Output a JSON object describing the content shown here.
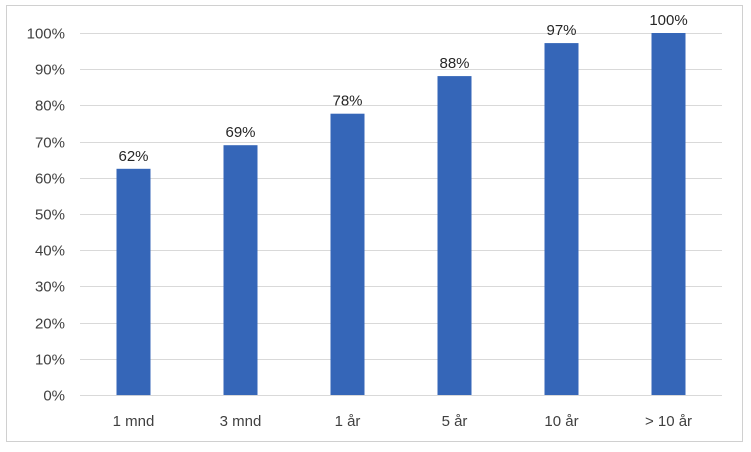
{
  "chart_data": {
    "type": "bar",
    "categories": [
      "1 mnd",
      "3 mnd",
      "1 år",
      "5 år",
      "10 år",
      "> 10 år"
    ],
    "values": [
      62.5,
      69,
      77.7,
      88.1,
      97.2,
      100
    ],
    "data_labels": [
      "62%",
      "69%",
      "78%",
      "88%",
      "97%",
      "100%"
    ],
    "y_ticks": [
      "0%",
      "10%",
      "20%",
      "30%",
      "40%",
      "50%",
      "60%",
      "70%",
      "80%",
      "90%",
      "100%"
    ],
    "ylim": [
      0,
      100
    ],
    "grid": true,
    "bar_color": "#3566b8",
    "grid_color": "#d9d9d9",
    "title": "",
    "xlabel": "",
    "ylabel": ""
  }
}
